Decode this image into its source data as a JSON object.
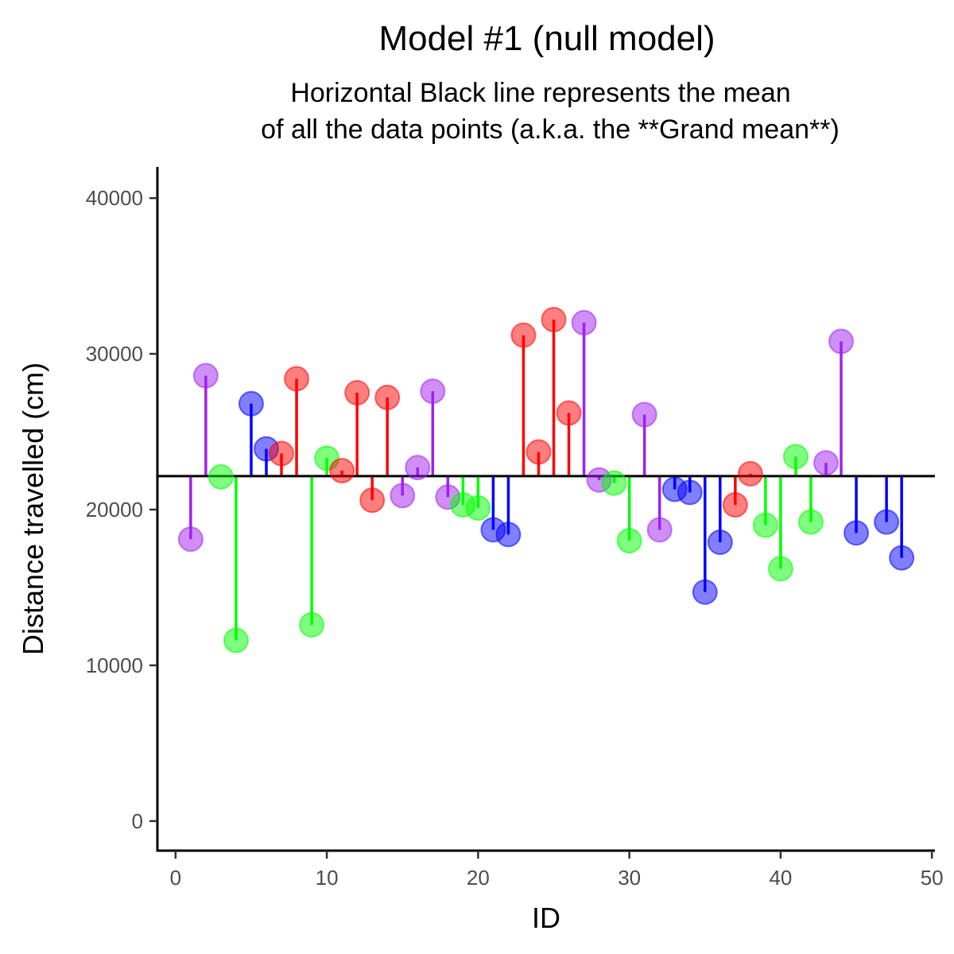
{
  "chart_data": {
    "type": "scatter",
    "title": "Model #1 (null model)",
    "subtitle_lines": [
      "Horizontal Black line represents the mean",
      "of all the data points (a.k.a. the **Grand mean**)"
    ],
    "xlabel": "ID",
    "ylabel": "Distance travelled (cm)",
    "xlim": [
      -1.2,
      50.2
    ],
    "ylim": [
      -1900,
      42000
    ],
    "x_ticks": [
      0,
      10,
      20,
      30,
      40,
      50
    ],
    "y_ticks": [
      0,
      10000,
      20000,
      30000,
      40000
    ],
    "x_tick_labels": [
      "0",
      "10",
      "20",
      "30",
      "40",
      "50"
    ],
    "y_tick_labels": [
      "0",
      "10000",
      "20000",
      "30000",
      "40000"
    ],
    "grand_mean": 22150,
    "grid": false,
    "legend": "none",
    "colors": {
      "purple": "#a020f0",
      "green": "#00ff00",
      "blue": "#0000ff",
      "red": "#ff0000",
      "mean_line": "#000000"
    },
    "points": [
      {
        "x": 1,
        "y": 18100,
        "color": "purple"
      },
      {
        "x": 2,
        "y": 28600,
        "color": "purple"
      },
      {
        "x": 3,
        "y": 22100,
        "color": "green"
      },
      {
        "x": 4,
        "y": 11600,
        "color": "green"
      },
      {
        "x": 5,
        "y": 26800,
        "color": "blue"
      },
      {
        "x": 6,
        "y": 23900,
        "color": "blue"
      },
      {
        "x": 7,
        "y": 23600,
        "color": "red"
      },
      {
        "x": 8,
        "y": 28400,
        "color": "red"
      },
      {
        "x": 9,
        "y": 12600,
        "color": "green"
      },
      {
        "x": 10,
        "y": 23300,
        "color": "green"
      },
      {
        "x": 11,
        "y": 22500,
        "color": "red"
      },
      {
        "x": 12,
        "y": 27500,
        "color": "red"
      },
      {
        "x": 13,
        "y": 20600,
        "color": "red"
      },
      {
        "x": 14,
        "y": 27200,
        "color": "red"
      },
      {
        "x": 15,
        "y": 20900,
        "color": "purple"
      },
      {
        "x": 16,
        "y": 22700,
        "color": "purple"
      },
      {
        "x": 17,
        "y": 27600,
        "color": "purple"
      },
      {
        "x": 18,
        "y": 20800,
        "color": "purple"
      },
      {
        "x": 19,
        "y": 20300,
        "color": "green"
      },
      {
        "x": 20,
        "y": 20100,
        "color": "green"
      },
      {
        "x": 21,
        "y": 18700,
        "color": "blue"
      },
      {
        "x": 22,
        "y": 18400,
        "color": "blue"
      },
      {
        "x": 23,
        "y": 31200,
        "color": "red"
      },
      {
        "x": 24,
        "y": 23700,
        "color": "red"
      },
      {
        "x": 25,
        "y": 32200,
        "color": "red"
      },
      {
        "x": 26,
        "y": 26200,
        "color": "red"
      },
      {
        "x": 27,
        "y": 32000,
        "color": "purple"
      },
      {
        "x": 28,
        "y": 21900,
        "color": "purple"
      },
      {
        "x": 29,
        "y": 21700,
        "color": "green"
      },
      {
        "x": 30,
        "y": 18000,
        "color": "green"
      },
      {
        "x": 31,
        "y": 26100,
        "color": "purple"
      },
      {
        "x": 32,
        "y": 18700,
        "color": "purple"
      },
      {
        "x": 33,
        "y": 21300,
        "color": "blue"
      },
      {
        "x": 34,
        "y": 21100,
        "color": "blue"
      },
      {
        "x": 35,
        "y": 14700,
        "color": "blue"
      },
      {
        "x": 36,
        "y": 17900,
        "color": "blue"
      },
      {
        "x": 37,
        "y": 20300,
        "color": "red"
      },
      {
        "x": 38,
        "y": 22300,
        "color": "red"
      },
      {
        "x": 39,
        "y": 19000,
        "color": "green"
      },
      {
        "x": 40,
        "y": 16200,
        "color": "green"
      },
      {
        "x": 41,
        "y": 23400,
        "color": "green"
      },
      {
        "x": 42,
        "y": 19200,
        "color": "green"
      },
      {
        "x": 43,
        "y": 23000,
        "color": "purple"
      },
      {
        "x": 44,
        "y": 30800,
        "color": "purple"
      },
      {
        "x": 45,
        "y": 18500,
        "color": "blue"
      },
      {
        "x": 47,
        "y": 19200,
        "color": "blue"
      },
      {
        "x": 48,
        "y": 16900,
        "color": "blue"
      }
    ]
  }
}
